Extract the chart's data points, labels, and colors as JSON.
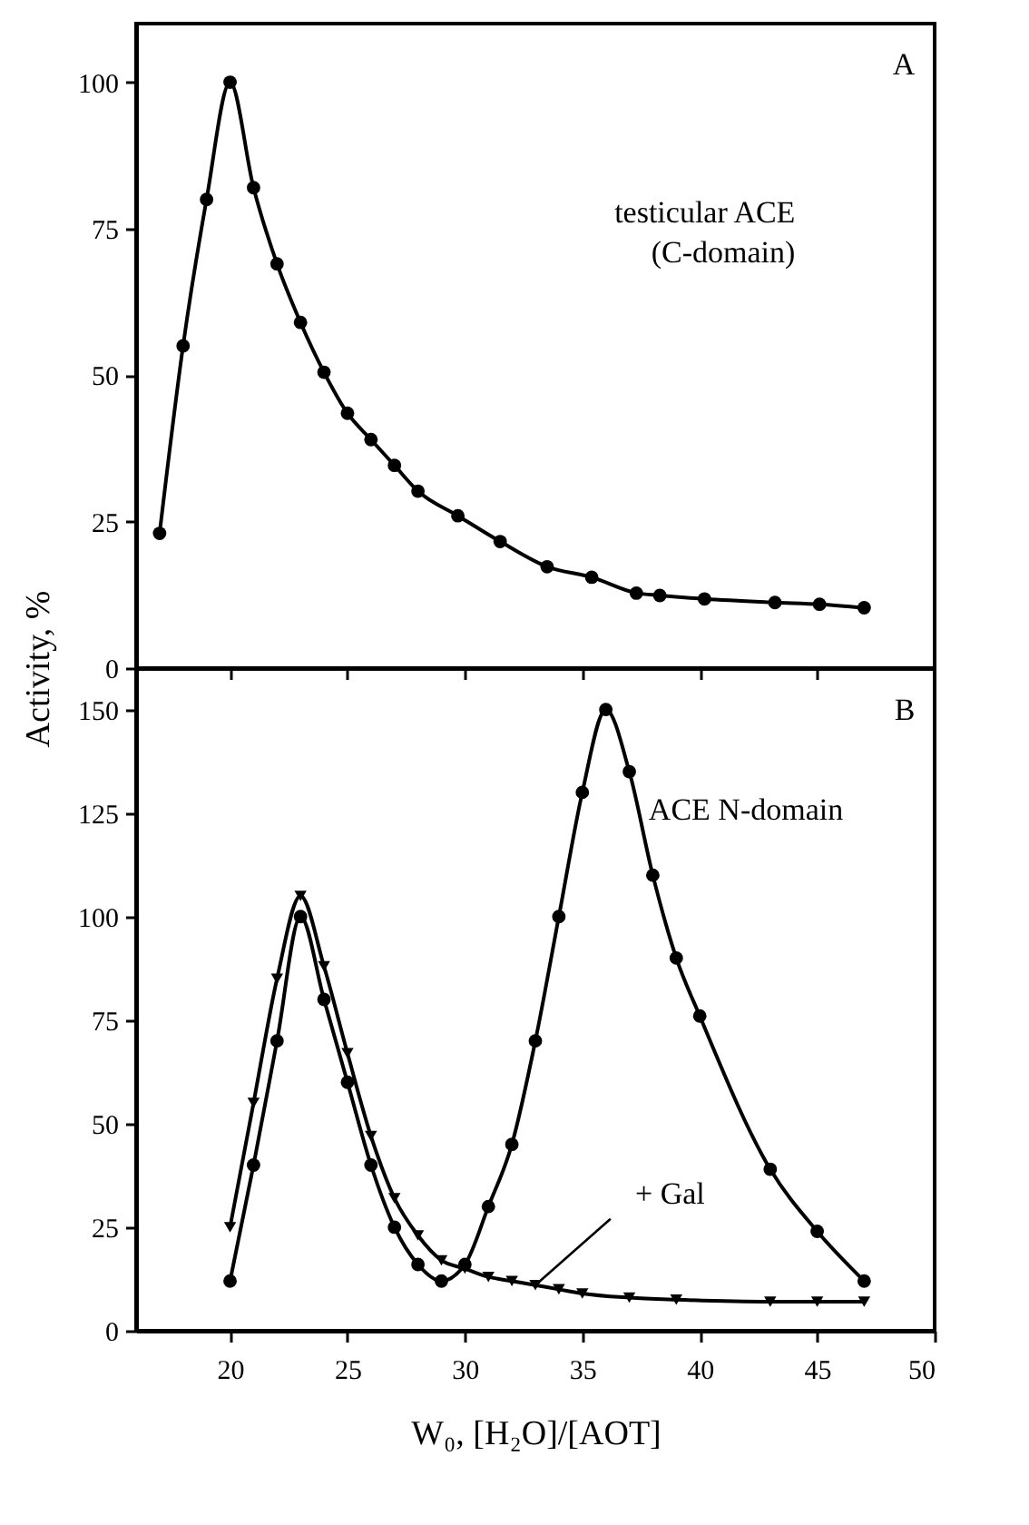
{
  "chart_data": [
    {
      "type": "line",
      "ylabel": "Activity, %",
      "xlim": [
        16,
        50
      ],
      "xticks": [
        {
          "value": 20,
          "label": null
        },
        {
          "value": 25,
          "label": null
        },
        {
          "value": 30,
          "label": null
        },
        {
          "value": 35,
          "label": null
        },
        {
          "value": 40,
          "label": null
        },
        {
          "value": 45,
          "label": null
        }
      ],
      "ylim": [
        0,
        110
      ],
      "yticks": [
        0,
        25,
        50,
        75,
        100
      ],
      "tick_labels": "y",
      "grid": false,
      "marker": "circle",
      "x": [
        17,
        18,
        19,
        20,
        21,
        22,
        23,
        24,
        25,
        26,
        27,
        28,
        29.7,
        31.5,
        33.5,
        35.4,
        37.3,
        38.3,
        40.2,
        43.2,
        45.1,
        47
      ],
      "series": [
        {
          "color": "#000000",
          "values": [
            23,
            55,
            80,
            100,
            82,
            69,
            59,
            50.5,
            43.5,
            39,
            34.6,
            30.2,
            26,
            21.6,
            17.3,
            15.5,
            12.8,
            12.4,
            11.8,
            11.2,
            10.9,
            10.3
          ]
        }
      ],
      "annotations": [
        "A",
        "testicular ACE\n(C-domain)"
      ]
    },
    {
      "type": "line",
      "xlabel": "W₀, [H₂O]/[AOT]",
      "xlim": [
        16,
        50
      ],
      "xticks": [
        20,
        25,
        30,
        35,
        40,
        45,
        50
      ],
      "ylim": [
        0,
        160
      ],
      "yticks": [
        0,
        25,
        50,
        75,
        100,
        125,
        150
      ],
      "grid": false,
      "series": [
        {
          "color": "#000000",
          "marker": "circle",
          "x": [
            20,
            21,
            22,
            23,
            24,
            25,
            26,
            27,
            28,
            29,
            30,
            31,
            32,
            33,
            34,
            35,
            36,
            37,
            38,
            39,
            40,
            43,
            45,
            47
          ],
          "values": [
            12,
            40,
            70,
            100,
            80,
            60,
            40,
            25,
            16,
            12,
            16,
            30,
            45,
            70,
            100,
            130,
            150,
            135,
            110,
            90,
            76,
            39,
            24,
            12
          ]
        },
        {
          "color": "#000000",
          "marker": "triangle",
          "x": [
            20,
            21,
            22,
            23,
            24,
            25,
            26,
            27,
            28,
            29,
            30,
            31,
            32,
            33,
            34,
            35,
            37,
            39,
            43,
            45,
            47
          ],
          "values": [
            25,
            55,
            85,
            105,
            88,
            67,
            47,
            32,
            23,
            17,
            15,
            13,
            12,
            11,
            10,
            9,
            8,
            7.5,
            7,
            7,
            7
          ]
        }
      ],
      "annotations": [
        "B",
        "ACE N-domain",
        {
          "text": "+ Gal",
          "x": 33,
          "y": 11
        }
      ]
    }
  ]
}
